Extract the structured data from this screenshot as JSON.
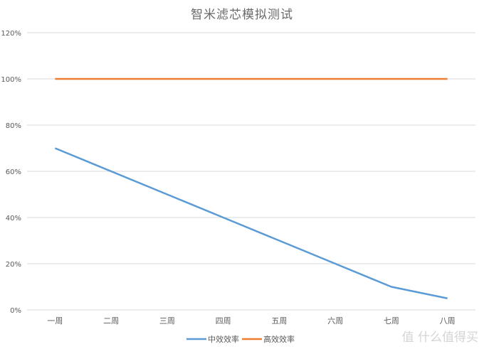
{
  "chart_data": {
    "type": "line",
    "title": "智米滤芯模拟测试",
    "xlabel": "",
    "ylabel": "",
    "categories": [
      "一周",
      "二周",
      "三周",
      "四周",
      "五周",
      "六周",
      "七周",
      "八周"
    ],
    "series": [
      {
        "name": "中效效率",
        "color": "#5b9bd5",
        "values": [
          70,
          60,
          50,
          40,
          30,
          20,
          10,
          5
        ]
      },
      {
        "name": "高效效率",
        "color": "#ed7d31",
        "values": [
          100,
          100,
          100,
          100,
          100,
          100,
          100,
          100
        ]
      }
    ],
    "ylim": [
      0,
      120
    ],
    "yticks": [
      "0%",
      "20%",
      "40%",
      "60%",
      "80%",
      "100%",
      "120%"
    ],
    "grid": true,
    "legend_position": "bottom"
  },
  "watermark": "值 什么值得买"
}
